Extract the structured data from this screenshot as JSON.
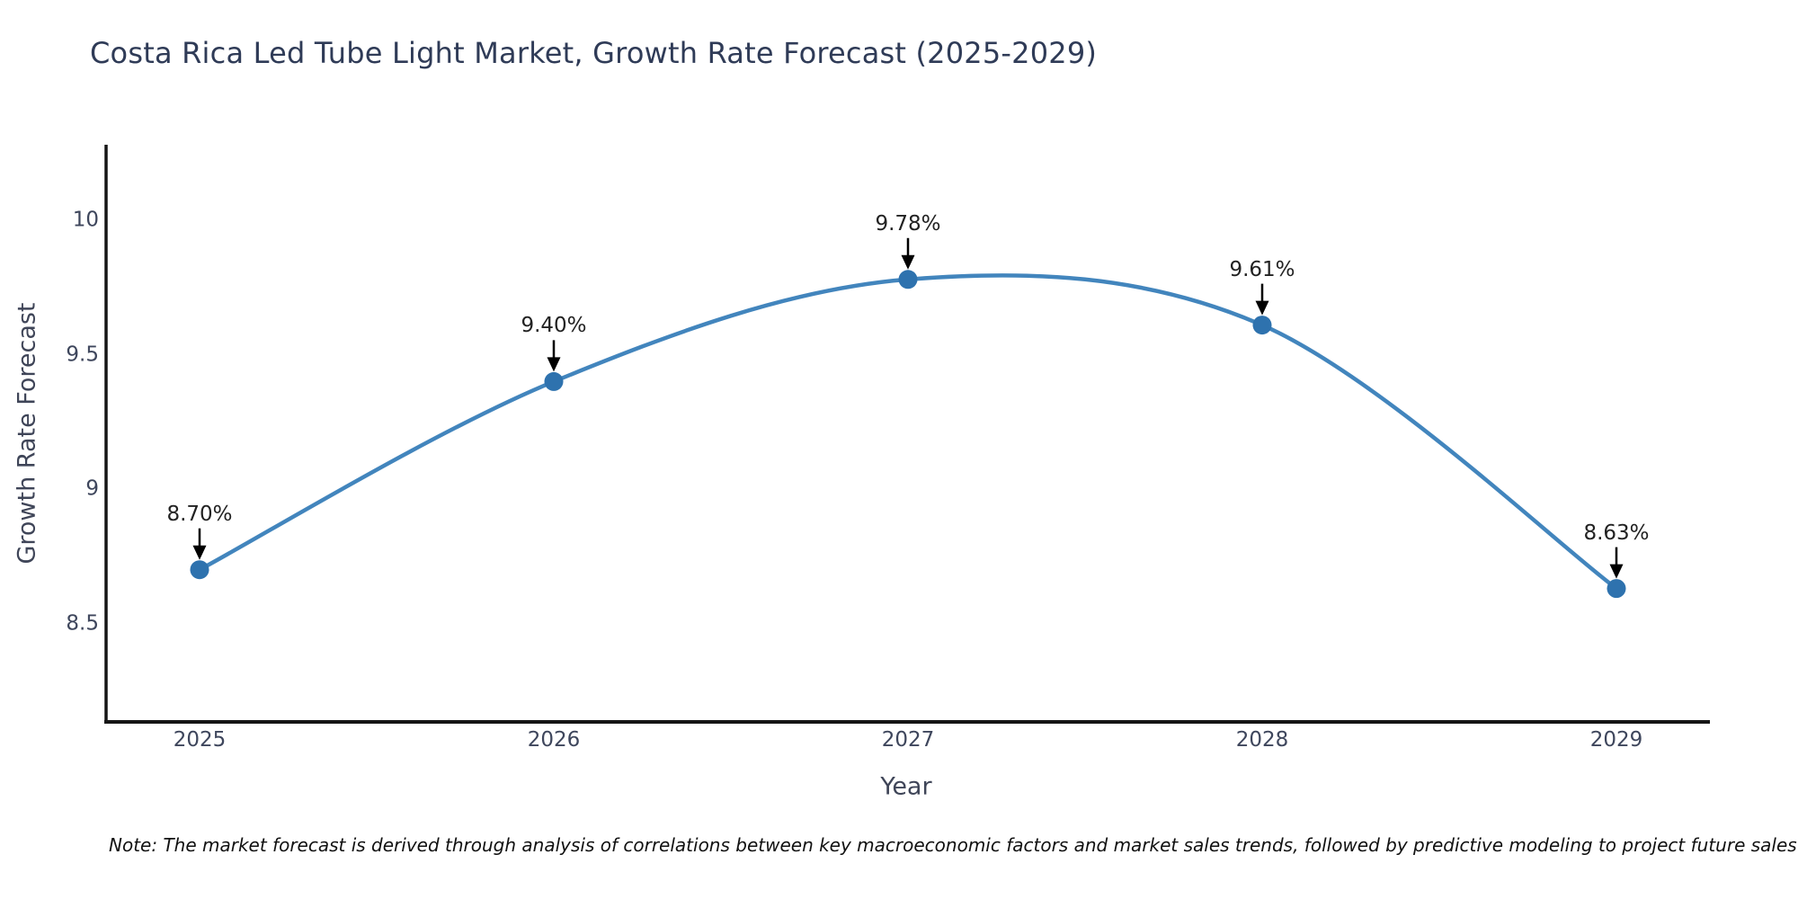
{
  "title": "Costa Rica Led Tube Light Market, Growth Rate Forecast (2025-2029)",
  "note": "Note: The market forecast is derived through analysis of correlations between key macroeconomic factors and market sales trends, followed by predictive modeling to project future sales",
  "chart_data": {
    "type": "line",
    "line_shape": "spline",
    "x": [
      2025,
      2026,
      2027,
      2028,
      2029
    ],
    "values": [
      8.7,
      9.4,
      9.78,
      9.61,
      8.63
    ],
    "point_labels": [
      "8.70%",
      "9.40%",
      "9.78%",
      "9.61%",
      "8.63%"
    ],
    "series_name": "Growth Rate Forecast",
    "title": "Costa Rica Led Tube Light Market, Growth Rate Forecast (2025-2029)",
    "xlabel": "Year",
    "ylabel": "Growth Rate Forecast",
    "xtick_labels": [
      "2025",
      "2026",
      "2027",
      "2028",
      "2029"
    ],
    "yticks": [
      8.5,
      9,
      9.5,
      10
    ],
    "ytick_labels": [
      "8.5",
      "9",
      "9.5",
      "10"
    ],
    "ylim": [
      8.2,
      10.3
    ],
    "grid": false,
    "legend": "none",
    "annotations_style": "value labels above points with black down arrows",
    "colors": {
      "line": "#4285bd",
      "marker": "#2e72ae",
      "axis": "#161616",
      "title_text": "#2f3b57",
      "tick_text": "#3e465c",
      "annotation_text": "#222222",
      "note_text": "#111111",
      "background": "#ffffff"
    }
  }
}
